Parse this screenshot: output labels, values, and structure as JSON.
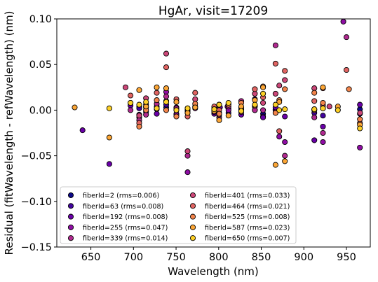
{
  "chart_data": {
    "type": "scatter",
    "title": "HgAr, visit=17209",
    "xlabel": "Wavelength (nm)",
    "ylabel": "Residual (fitWavelength - refWavelength) (nm)",
    "xlim": [
      610,
      978
    ],
    "ylim": [
      -0.15,
      0.1
    ],
    "xticks": [
      "650",
      "700",
      "750",
      "800",
      "850",
      "900",
      "950"
    ],
    "xtick_values": [
      650,
      700,
      750,
      800,
      850,
      900,
      950
    ],
    "yticks": [
      "0.10",
      "0.05",
      "0.00",
      "−0.05",
      "−0.10",
      "−0.15"
    ],
    "ytick_values": [
      0.1,
      0.05,
      0.0,
      -0.05,
      -0.1,
      -0.15
    ],
    "grid": false,
    "legend_position": "lower-left",
    "legend_columns": 2,
    "series": [
      {
        "name": "fiberId=2 (rms=0.006)",
        "color": "#0d0887",
        "points": [
          [
            706.7,
            0.004
          ],
          [
            714.7,
            -0.002
          ],
          [
            727.3,
            0.001
          ],
          [
            738.4,
            0.003
          ],
          [
            763.5,
            0.0
          ],
          [
            794.8,
            0.002
          ],
          [
            800.6,
            0.005
          ],
          [
            811.5,
            0.002
          ],
          [
            826.5,
            0.001
          ],
          [
            842.5,
            0.004
          ],
          [
            852.1,
            -0.004
          ],
          [
            866.8,
            0.0
          ],
          [
            912.3,
            0.001
          ],
          [
            922.4,
            0.002
          ],
          [
            965.8,
            0.001
          ]
        ]
      },
      {
        "name": "fiberId=63 (rms=0.008)",
        "color": "#41049d",
        "points": [
          [
            706.7,
            0.002
          ],
          [
            727.3,
            0.004
          ],
          [
            738.4,
            0.006
          ],
          [
            750.4,
            0.003
          ],
          [
            763.5,
            -0.001
          ],
          [
            794.8,
            0.0
          ],
          [
            800.6,
            0.006
          ],
          [
            811.5,
            -0.003
          ],
          [
            826.5,
            0.003
          ],
          [
            842.5,
            0.0
          ],
          [
            852.1,
            -0.007
          ],
          [
            866.8,
            0.001
          ],
          [
            912.3,
            -0.003
          ],
          [
            922.4,
            -0.006
          ],
          [
            965.8,
            -0.004
          ]
        ]
      },
      {
        "name": "fiberId=192 (rms=0.008)",
        "color": "#6a00a8",
        "points": [
          [
            640.2,
            -0.022
          ],
          [
            671.7,
            -0.059
          ],
          [
            696.5,
            0.005
          ],
          [
            706.7,
            -0.005
          ],
          [
            714.7,
            0.006
          ],
          [
            727.3,
            -0.004
          ],
          [
            738.4,
            0.01
          ],
          [
            750.4,
            -0.004
          ],
          [
            763.5,
            0.002
          ],
          [
            772.4,
            0.004
          ],
          [
            794.8,
            -0.004
          ],
          [
            800.6,
            -0.003
          ],
          [
            801.5,
            0.003
          ],
          [
            810.4,
            0.004
          ],
          [
            826.5,
            -0.005
          ],
          [
            842.5,
            0.005
          ],
          [
            852.1,
            -0.008
          ],
          [
            866.8,
            0.003
          ],
          [
            877.7,
            -0.007
          ],
          [
            912.3,
            -0.033
          ],
          [
            922.4,
            -0.018
          ],
          [
            965.8,
            0.006
          ]
        ]
      },
      {
        "name": "fiberId=255 (rms=0.047)",
        "color": "#8f0da4",
        "points": [
          [
            706.7,
            -0.008
          ],
          [
            714.7,
            0.003
          ],
          [
            738.4,
            0.02
          ],
          [
            750.4,
            -0.005
          ],
          [
            763.5,
            -0.068
          ],
          [
            794.8,
            -0.002
          ],
          [
            811.5,
            0.0
          ],
          [
            842.5,
            0.012
          ],
          [
            866.8,
            -0.003
          ],
          [
            871.1,
            -0.029
          ],
          [
            877.7,
            -0.035
          ],
          [
            922.4,
            -0.035
          ],
          [
            946.4,
            0.097
          ],
          [
            965.8,
            -0.041
          ]
        ]
      },
      {
        "name": "fiberId=339 (rms=0.014)",
        "color": "#b12a90",
        "points": [
          [
            696.5,
            0.0
          ],
          [
            706.7,
            -0.011
          ],
          [
            714.7,
            -0.005
          ],
          [
            727.3,
            0.007
          ],
          [
            738.4,
            0.015
          ],
          [
            750.4,
            0.002
          ],
          [
            763.5,
            -0.05
          ],
          [
            772.4,
            0.002
          ],
          [
            800.6,
            -0.008
          ],
          [
            811.5,
            0.004
          ],
          [
            826.5,
            0.01
          ],
          [
            842.5,
            0.0
          ],
          [
            852.1,
            0.0
          ],
          [
            866.8,
            0.071
          ],
          [
            877.7,
            -0.05
          ],
          [
            912.3,
            -0.008
          ],
          [
            922.4,
            -0.025
          ],
          [
            950.0,
            0.08
          ]
        ]
      },
      {
        "name": "fiberId=401 (rms=0.033)",
        "color": "#cc4778",
        "points": [
          [
            690.7,
            0.025
          ],
          [
            706.7,
            -0.006
          ],
          [
            714.7,
            0.013
          ],
          [
            738.4,
            0.062
          ],
          [
            750.4,
            0.0
          ],
          [
            763.5,
            -0.045
          ],
          [
            772.4,
            0.012
          ],
          [
            794.8,
            0.0
          ],
          [
            800.6,
            -0.005
          ],
          [
            811.5,
            0.007
          ],
          [
            826.5,
            0.0
          ],
          [
            842.5,
            0.018
          ],
          [
            852.1,
            0.008
          ],
          [
            866.8,
            0.018
          ],
          [
            871.1,
            0.027
          ],
          [
            877.7,
            0.033
          ],
          [
            912.3,
            0.024
          ],
          [
            922.4,
            0.005
          ],
          [
            930.0,
            0.004
          ],
          [
            966.0,
            -0.003
          ]
        ]
      },
      {
        "name": "fiberId=464 (rms=0.021)",
        "color": "#e16462",
        "points": [
          [
            696.5,
            0.016
          ],
          [
            706.7,
            -0.014
          ],
          [
            714.7,
            0.004
          ],
          [
            727.3,
            0.019
          ],
          [
            738.4,
            0.047
          ],
          [
            750.4,
            0.012
          ],
          [
            763.5,
            -0.007
          ],
          [
            772.4,
            0.019
          ],
          [
            794.8,
            0.004
          ],
          [
            800.6,
            0.0
          ],
          [
            826.5,
            -0.002
          ],
          [
            842.5,
            0.023
          ],
          [
            852.1,
            0.014
          ],
          [
            866.8,
            0.051
          ],
          [
            871.1,
            -0.023
          ],
          [
            877.7,
            0.043
          ],
          [
            912.3,
            0.01
          ],
          [
            922.4,
            0.024
          ],
          [
            950.0,
            0.044
          ],
          [
            965.8,
            -0.014
          ]
        ]
      },
      {
        "name": "fiberId=525 (rms=0.008)",
        "color": "#f2844b",
        "points": [
          [
            706.7,
            -0.018
          ],
          [
            714.7,
            0.0
          ],
          [
            727.3,
            0.011
          ],
          [
            738.4,
            0.0
          ],
          [
            750.4,
            -0.007
          ],
          [
            763.5,
            -0.003
          ],
          [
            772.4,
            0.007
          ],
          [
            794.8,
            0.001
          ],
          [
            800.6,
            -0.004
          ],
          [
            811.5,
            0.006
          ],
          [
            826.5,
            0.008
          ],
          [
            842.5,
            0.005
          ],
          [
            852.1,
            0.026
          ],
          [
            866.8,
            -0.003
          ],
          [
            871.1,
            0.011
          ],
          [
            877.7,
            0.023
          ],
          [
            912.3,
            0.019
          ],
          [
            922.4,
            0.008
          ],
          [
            953.0,
            0.023
          ],
          [
            965.8,
            -0.01
          ]
        ]
      },
      {
        "name": "fiberId=587 (rms=0.023)",
        "color": "#fca636",
        "points": [
          [
            631.0,
            0.003
          ],
          [
            671.7,
            -0.03
          ],
          [
            696.5,
            0.008
          ],
          [
            706.7,
            0.022
          ],
          [
            714.7,
            0.004
          ],
          [
            727.3,
            0.025
          ],
          [
            738.4,
            0.024
          ],
          [
            750.4,
            0.009
          ],
          [
            763.5,
            -0.003
          ],
          [
            772.4,
            0.003
          ],
          [
            794.8,
            -0.001
          ],
          [
            800.6,
            -0.011
          ],
          [
            811.5,
            -0.006
          ],
          [
            826.5,
            0.004
          ],
          [
            842.5,
            0.011
          ],
          [
            852.1,
            0.025
          ],
          [
            866.8,
            -0.06
          ],
          [
            871.1,
            0.009
          ],
          [
            877.7,
            -0.056
          ],
          [
            912.3,
            0.0
          ],
          [
            922.4,
            0.025
          ],
          [
            940.0,
            0.004
          ],
          [
            965.8,
            -0.016
          ]
        ]
      },
      {
        "name": "fiberId=650 (rms=0.007)",
        "color": "#fccf25",
        "points": [
          [
            671.7,
            0.002
          ],
          [
            696.5,
            0.008
          ],
          [
            706.7,
            0.006
          ],
          [
            714.7,
            0.009
          ],
          [
            727.3,
            0.002
          ],
          [
            738.4,
            0.009
          ],
          [
            750.4,
            0.0
          ],
          [
            763.5,
            0.002
          ],
          [
            794.8,
            0.001
          ],
          [
            800.6,
            0.006
          ],
          [
            811.5,
            0.008
          ],
          [
            826.5,
            -0.001
          ],
          [
            842.5,
            0.006
          ],
          [
            852.1,
            0.018
          ],
          [
            866.8,
            0.006
          ],
          [
            871.1,
            0.0
          ],
          [
            877.7,
            0.001
          ],
          [
            912.3,
            0.001
          ],
          [
            922.4,
            0.002
          ],
          [
            940.0,
            0.0
          ],
          [
            965.8,
            -0.02
          ]
        ]
      }
    ]
  }
}
